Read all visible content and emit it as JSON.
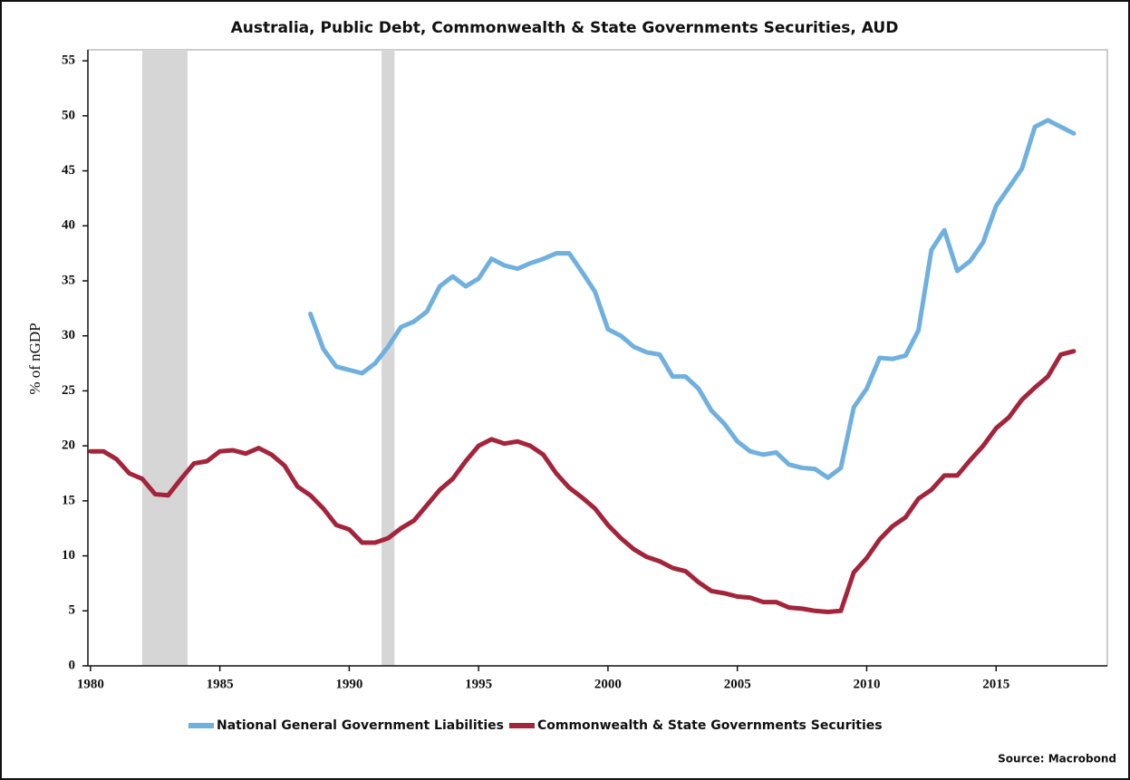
{
  "chart_data": {
    "type": "line",
    "title": "Australia, Public Debt, Commonwealth & State Governments Securities, AUD",
    "y_label": "% of nGDP",
    "source": "Source: Macrobond",
    "xlim": [
      1979.9,
      2019.3
    ],
    "xticks": [
      1980,
      1985,
      1990,
      1995,
      2000,
      2005,
      2010,
      2015
    ],
    "ylim": [
      0,
      56
    ],
    "yticks": [
      0,
      5,
      10,
      15,
      20,
      25,
      30,
      35,
      40,
      45,
      50,
      55
    ],
    "shaded_periods": [
      {
        "start": 1982.0,
        "end": 1983.75
      },
      {
        "start": 1991.25,
        "end": 1991.75
      }
    ],
    "shade_color": "#d6d6d6",
    "x": [
      1980,
      1980.5,
      1981,
      1981.5,
      1982,
      1982.5,
      1983,
      1983.5,
      1984,
      1984.5,
      1985,
      1985.5,
      1986,
      1986.5,
      1987,
      1987.5,
      1988,
      1988.5,
      1989,
      1989.5,
      1990,
      1990.5,
      1991,
      1991.5,
      1992,
      1992.5,
      1993,
      1993.5,
      1994,
      1994.5,
      1995,
      1995.5,
      1996,
      1996.5,
      1997,
      1997.5,
      1998,
      1998.5,
      1999,
      1999.5,
      2000,
      2000.5,
      2001,
      2001.5,
      2002,
      2002.5,
      2003,
      2003.5,
      2004,
      2004.5,
      2005,
      2005.5,
      2006,
      2006.5,
      2007,
      2007.5,
      2008,
      2008.5,
      2009,
      2009.5,
      2010,
      2010.5,
      2011,
      2011.5,
      2012,
      2012.5,
      2013,
      2013.5,
      2014,
      2014.5,
      2015,
      2015.5,
      2016,
      2016.5,
      2017,
      2017.5,
      2018
    ],
    "series": [
      {
        "name": "National General Government Liabilities",
        "color": "#6fb0df",
        "values": [
          null,
          null,
          null,
          null,
          null,
          null,
          null,
          null,
          null,
          null,
          null,
          null,
          null,
          null,
          null,
          null,
          null,
          32.0,
          28.8,
          27.2,
          26.9,
          26.6,
          27.5,
          29.0,
          30.8,
          31.3,
          32.2,
          34.5,
          35.4,
          34.5,
          35.2,
          37.0,
          36.4,
          36.1,
          36.6,
          37.0,
          37.5,
          37.5,
          35.8,
          34.0,
          30.6,
          30.0,
          29.0,
          28.5,
          28.3,
          26.3,
          26.3,
          25.2,
          23.2,
          22.0,
          20.4,
          19.5,
          19.2,
          19.4,
          18.3,
          18.0,
          17.9,
          17.1,
          18.0,
          23.5,
          25.2,
          28.0,
          27.9,
          28.2,
          30.5,
          37.8,
          39.6,
          35.9,
          36.8,
          38.5,
          41.8,
          43.5,
          45.2,
          49.0,
          49.6,
          49.0,
          48.4
        ]
      },
      {
        "name": "Commonwealth & State Governments Securities",
        "color": "#a3243b",
        "values": [
          19.5,
          19.5,
          18.8,
          17.5,
          17.0,
          15.6,
          15.5,
          17.0,
          18.4,
          18.6,
          19.5,
          19.6,
          19.3,
          19.8,
          19.2,
          18.2,
          16.3,
          15.5,
          14.3,
          12.8,
          12.4,
          11.2,
          11.2,
          11.6,
          12.5,
          13.2,
          14.6,
          16.0,
          17.0,
          18.6,
          20.0,
          20.6,
          20.2,
          20.4,
          20.0,
          19.2,
          17.5,
          16.2,
          15.3,
          14.3,
          12.8,
          11.6,
          10.6,
          9.9,
          9.5,
          8.9,
          8.6,
          7.6,
          6.8,
          6.6,
          6.3,
          6.2,
          5.8,
          5.8,
          5.3,
          5.2,
          5.0,
          4.9,
          5.0,
          8.5,
          9.8,
          11.5,
          12.7,
          13.5,
          15.2,
          16.0,
          17.3,
          17.3,
          18.7,
          20.0,
          21.6,
          22.6,
          24.2,
          25.3,
          26.3,
          28.3,
          28.6
        ]
      }
    ]
  }
}
